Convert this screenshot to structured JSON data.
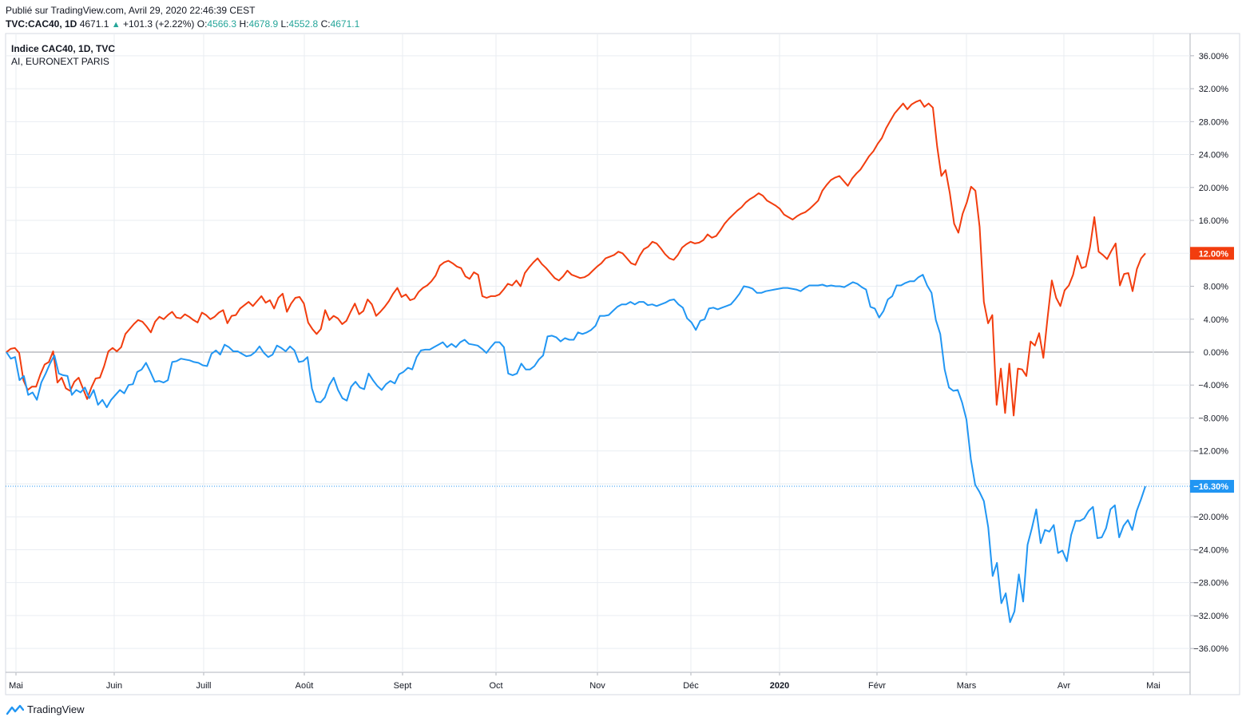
{
  "header": {
    "published": "Publié sur TradingView.com, Avril 29, 2020 22:46:39 CEST",
    "symbol": "TVC:CAC40, 1D",
    "last": "4671.1",
    "change": "+101.3 (+2.22%)",
    "open_label": "O:",
    "open": "4566.3",
    "high_label": "H:",
    "high": "4678.9",
    "low_label": "L:",
    "low": "4552.8",
    "close_label": "C:",
    "close": "4671.1"
  },
  "legend": {
    "main": "Indice CAC40, 1D, TVC",
    "compare": "AI, EURONEXT PARIS"
  },
  "footer": {
    "brand": "TradingView",
    "icon": "tradingview-logo-icon"
  },
  "colors": {
    "cac40": "#2196f3",
    "ai": "#f23d0e",
    "grid": "#e9edf2",
    "axis_text": "#131722"
  },
  "chart_data": {
    "type": "line",
    "title": "Indice CAC40, 1D, TVC",
    "x_labels": [
      "Mai",
      "Juin",
      "Juill",
      "Août",
      "Sept",
      "Oct",
      "Nov",
      "Déc",
      "2020",
      "Févr",
      "Mars",
      "Avr",
      "Mai"
    ],
    "y_unit": "%",
    "ylim": [
      -38,
      38
    ],
    "y_ticks": [
      "36.00%",
      "32.00%",
      "28.00%",
      "24.00%",
      "20.00%",
      "16.00%",
      "12.00%",
      "8.00%",
      "4.00%",
      "0.00%",
      "−4.00%",
      "−8.00%",
      "−12.00%",
      "−16.00%",
      "−20.00%",
      "−24.00%",
      "−28.00%",
      "−32.00%",
      "−36.00%"
    ],
    "grid": true,
    "series": [
      {
        "name": "Indice CAC40",
        "color": "#2196f3",
        "last_label": "−16.30%",
        "values": [
          0,
          -0.8,
          -0.6,
          -3.4,
          -2.9,
          -5.2,
          -4.9,
          -5.8,
          -3.7,
          -2.6,
          -1.4,
          -0.4,
          -2.6,
          -2.8,
          -2.9,
          -5.2,
          -4.6,
          -4.9,
          -4.3,
          -5.6,
          -4.6,
          -6.4,
          -5.8,
          -6.7,
          -5.8,
          -5.2,
          -4.6,
          -5.0,
          -4.0,
          -3.9,
          -2.4,
          -2.1,
          -1.3,
          -2.4,
          -3.6,
          -3.5,
          -3.7,
          -3.4,
          -1.2,
          -1.1,
          -0.8,
          -0.9,
          -1.0,
          -1.2,
          -1.3,
          -1.6,
          -1.7,
          -0.2,
          0.2,
          -0.3,
          0.9,
          0.6,
          0.1,
          0.1,
          -0.2,
          -0.5,
          -0.4,
          0.0,
          0.7,
          -0.1,
          -0.6,
          -0.3,
          0.8,
          0.5,
          0.1,
          0.7,
          0.2,
          -1.2,
          -1.1,
          -0.6,
          -4.4,
          -6.0,
          -6.1,
          -5.5,
          -4.0,
          -3.1,
          -4.6,
          -5.6,
          -5.9,
          -4.2,
          -3.6,
          -4.3,
          -4.5,
          -2.6,
          -3.4,
          -4.1,
          -4.6,
          -3.9,
          -3.5,
          -3.8,
          -2.7,
          -2.4,
          -1.9,
          -2.1,
          -0.6,
          0.2,
          0.3,
          0.3,
          0.6,
          0.9,
          1.2,
          0.6,
          1.0,
          0.6,
          1.2,
          1.5,
          1.0,
          0.9,
          0.8,
          0.4,
          -0.1,
          0.6,
          1.2,
          1.2,
          0.6,
          -2.6,
          -2.8,
          -2.6,
          -1.4,
          -2.1,
          -2.1,
          -1.7,
          -0.9,
          -0.4,
          1.9,
          2.0,
          1.8,
          1.3,
          1.7,
          1.5,
          1.5,
          2.4,
          2.2,
          2.4,
          2.7,
          3.2,
          4.4,
          4.4,
          4.5,
          5.0,
          5.5,
          5.8,
          5.8,
          6.1,
          5.8,
          6.1,
          6.1,
          5.7,
          5.8,
          5.6,
          5.8,
          6.0,
          6.3,
          6.4,
          5.8,
          5.4,
          4.1,
          3.6,
          2.7,
          3.8,
          4.0,
          5.3,
          5.4,
          5.2,
          5.4,
          5.6,
          5.8,
          6.4,
          7.1,
          8.0,
          7.9,
          7.7,
          7.2,
          7.2,
          7.4,
          7.5,
          7.6,
          7.7,
          7.8,
          7.8,
          7.7,
          7.6,
          7.4,
          7.8,
          8.1,
          8.1,
          8.1,
          8.2,
          8.0,
          8.1,
          8.0,
          8.0,
          7.9,
          8.2,
          8.5,
          8.3,
          7.9,
          7.6,
          5.5,
          5.3,
          4.2,
          5.0,
          6.4,
          6.8,
          8.1,
          8.1,
          8.4,
          8.6,
          8.6,
          9.1,
          9.4,
          8.1,
          7.2,
          3.9,
          2.2,
          -2.1,
          -4.3,
          -4.7,
          -4.6,
          -6.1,
          -8.2,
          -13.0,
          -16.1,
          -17.0,
          -18.1,
          -21.3,
          -27.2,
          -25.6,
          -30.5,
          -29.3,
          -32.8,
          -31.5,
          -27.0,
          -30.3,
          -23.4,
          -21.4,
          -19.1,
          -23.2,
          -21.6,
          -21.8,
          -21.0,
          -24.4,
          -24.1,
          -25.4,
          -22.2,
          -20.5,
          -20.5,
          -20.2,
          -19.3,
          -18.8,
          -22.6,
          -22.5,
          -21.4,
          -19.1,
          -18.6,
          -22.5,
          -21.1,
          -20.4,
          -21.6,
          -19.3,
          -17.9,
          -16.3
        ]
      },
      {
        "name": "AI, EURONEXT PARIS",
        "color": "#f23d0e",
        "last_label": "12.00%",
        "values": [
          0,
          0.4,
          0.5,
          -0.1,
          -3.4,
          -4.6,
          -4.2,
          -4.2,
          -2.7,
          -1.5,
          -1.2,
          0.1,
          -3.7,
          -3.1,
          -4.4,
          -4.7,
          -3.6,
          -3.1,
          -4.4,
          -5.7,
          -4.3,
          -3.2,
          -3.1,
          -1.7,
          0.1,
          0.5,
          0.1,
          0.6,
          2.2,
          2.8,
          3.4,
          3.9,
          3.7,
          3.1,
          2.4,
          3.7,
          4.3,
          4.0,
          4.5,
          4.9,
          4.2,
          4.1,
          4.6,
          4.3,
          3.9,
          3.6,
          4.8,
          4.5,
          4.0,
          4.3,
          4.8,
          5.1,
          3.5,
          4.4,
          4.5,
          5.3,
          5.7,
          6.1,
          5.6,
          6.2,
          6.8,
          6.0,
          6.3,
          5.3,
          6.6,
          7.1,
          4.9,
          5.9,
          6.6,
          6.7,
          5.9,
          3.6,
          2.8,
          2.2,
          2.8,
          5.1,
          3.9,
          4.4,
          4.1,
          3.4,
          3.8,
          4.9,
          5.9,
          4.6,
          5.0,
          6.4,
          5.8,
          4.4,
          4.9,
          5.5,
          6.2,
          7.1,
          7.8,
          6.7,
          7.0,
          6.3,
          6.5,
          7.3,
          7.8,
          8.1,
          8.6,
          9.3,
          10.5,
          10.9,
          11.1,
          10.8,
          10.4,
          10.2,
          9.2,
          8.9,
          9.7,
          9.4,
          6.8,
          6.6,
          6.8,
          6.8,
          7.0,
          7.6,
          8.3,
          8.1,
          8.7,
          8.0,
          9.6,
          10.3,
          10.9,
          11.4,
          10.7,
          10.2,
          9.6,
          9.0,
          8.7,
          9.2,
          9.9,
          9.4,
          9.2,
          9.0,
          9.1,
          9.4,
          9.9,
          10.4,
          10.8,
          11.4,
          11.6,
          11.8,
          12.2,
          12.0,
          11.4,
          10.8,
          10.6,
          11.7,
          12.5,
          12.8,
          13.4,
          13.2,
          12.6,
          11.9,
          11.4,
          11.2,
          11.8,
          12.7,
          13.1,
          13.4,
          13.2,
          13.3,
          13.6,
          14.3,
          13.9,
          14.1,
          14.8,
          15.6,
          16.2,
          16.7,
          17.2,
          17.6,
          18.2,
          18.6,
          18.9,
          19.3,
          19.0,
          18.4,
          18.1,
          17.8,
          17.4,
          16.7,
          16.4,
          16.1,
          16.5,
          16.8,
          17.0,
          17.4,
          17.9,
          18.4,
          19.6,
          20.3,
          20.9,
          21.2,
          21.4,
          20.8,
          20.2,
          21.1,
          21.7,
          22.2,
          23.0,
          23.8,
          24.4,
          25.3,
          26.0,
          27.2,
          28.1,
          29.0,
          29.6,
          30.2,
          29.5,
          30.1,
          30.4,
          30.6,
          29.8,
          30.2,
          29.7,
          25.0,
          21.4,
          22.1,
          19.3,
          15.6,
          14.5,
          16.8,
          18.2,
          20.1,
          19.6,
          15.2,
          6.1,
          3.5,
          4.5,
          -6.4,
          -2.0,
          -7.4,
          -1.4,
          -7.7,
          -2.0,
          -2.1,
          -2.9,
          1.3,
          0.8,
          2.3,
          -0.7,
          4.2,
          8.7,
          6.6,
          5.6,
          7.5,
          8.1,
          9.4,
          11.7,
          10.2,
          10.4,
          12.8,
          16.4,
          12.2,
          11.8,
          11.3,
          12.3,
          13.2,
          8.1,
          9.5,
          9.6,
          7.4,
          10.1,
          11.4,
          12.0
        ]
      }
    ]
  }
}
